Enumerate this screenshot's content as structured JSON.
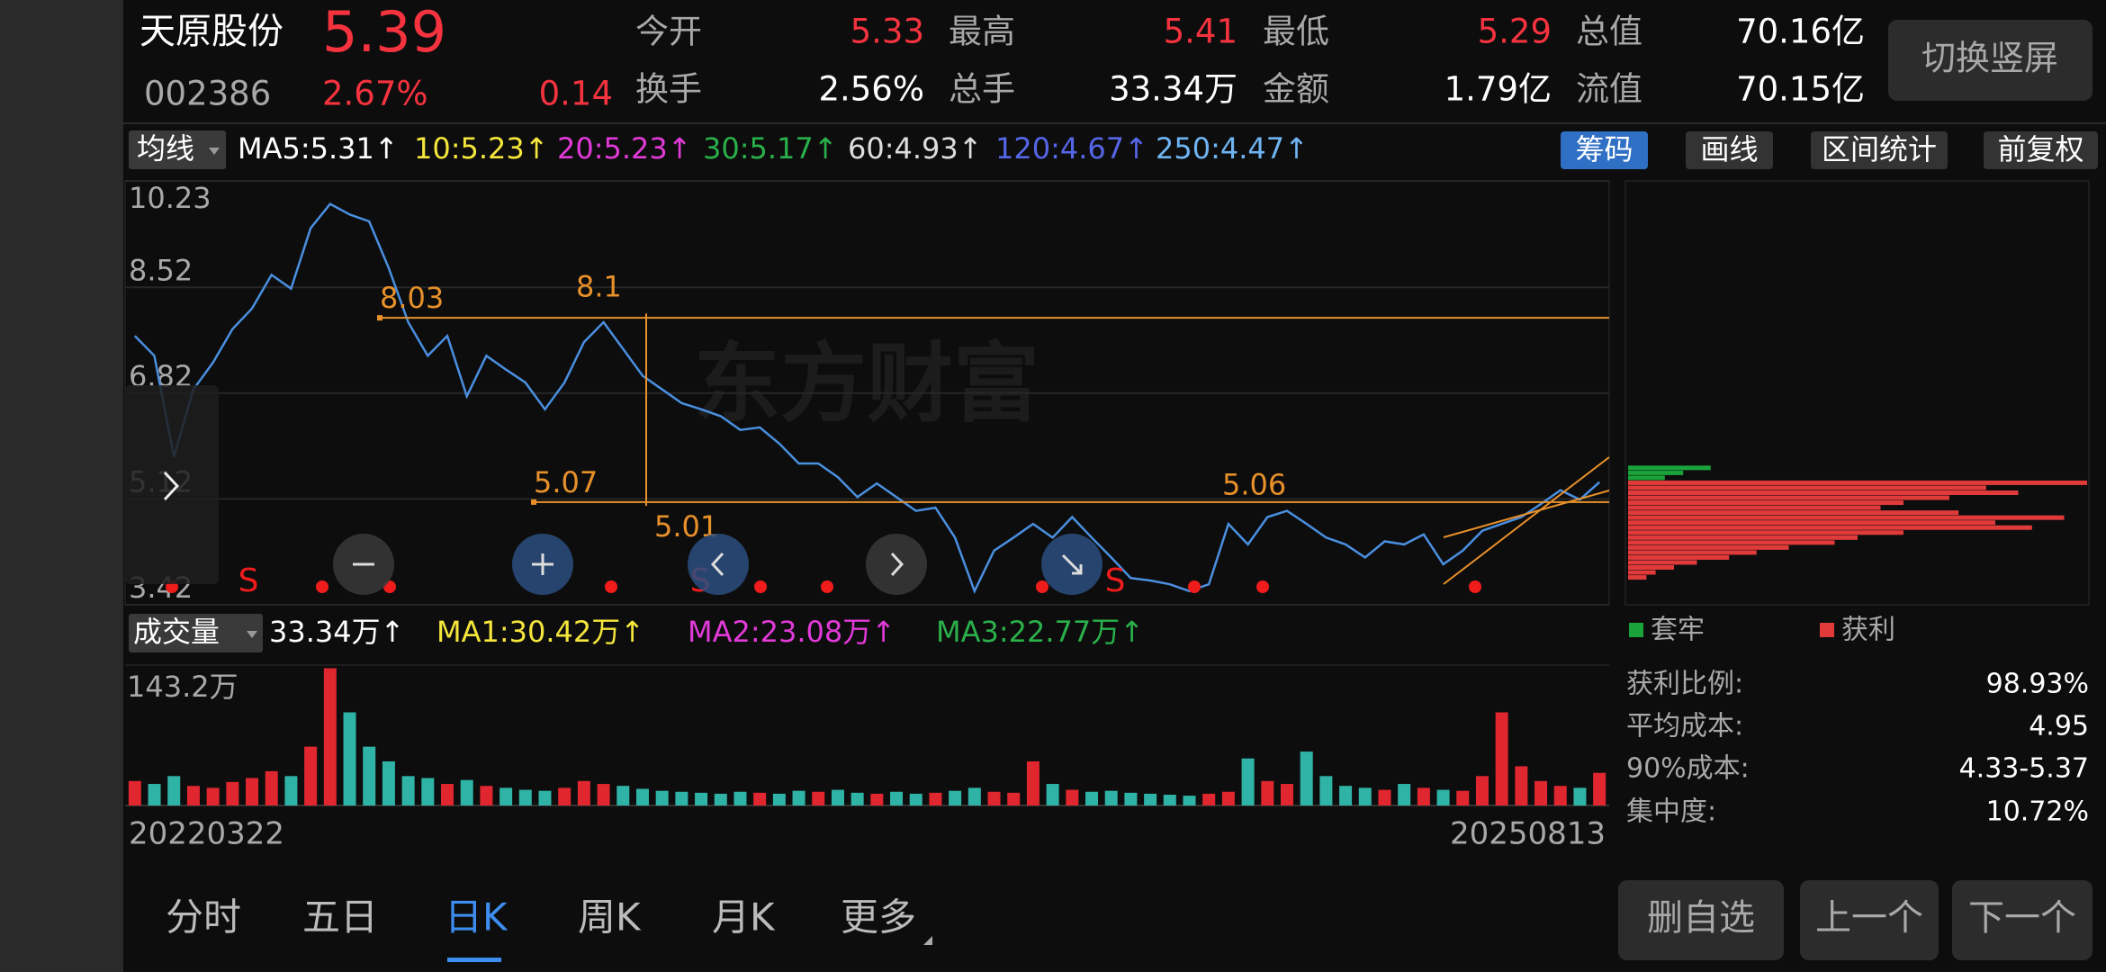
{
  "header": {
    "name": "天原股份",
    "price": "5.39",
    "code": "002386",
    "change_pct": "2.67%",
    "change": "0.14",
    "fields": [
      {
        "label": "今开",
        "value": "5.33"
      },
      {
        "label": "最高",
        "value": "5.41"
      },
      {
        "label": "最低",
        "value": "5.29"
      },
      {
        "label": "总值",
        "value": "70.16亿"
      },
      {
        "label": "换手",
        "value": "2.56%"
      },
      {
        "label": "总手",
        "value": "33.34万"
      },
      {
        "label": "金额",
        "value": "1.79亿"
      },
      {
        "label": "流值",
        "value": "70.15亿"
      }
    ],
    "button": "切换竖屏"
  },
  "ma_legend": {
    "label": "均线",
    "items": [
      {
        "text": "MA5:5.31↑",
        "color": "#ffffff"
      },
      {
        "text": "10:5.23↑",
        "color": "#f5e63c"
      },
      {
        "text": "20:5.23↑",
        "color": "#e23ad8"
      },
      {
        "text": "30:5.17↑",
        "color": "#2ab04a"
      },
      {
        "text": "60:4.93↑",
        "color": "#dddddd"
      },
      {
        "text": "120:4.67↑",
        "color": "#5566e8"
      },
      {
        "text": "250:4.47↑",
        "color": "#6fb4f2"
      }
    ]
  },
  "tools": [
    "筹码",
    "画线",
    "区间统计",
    "前复权"
  ],
  "price_chart": {
    "type": "line",
    "color": "#4a8fe0",
    "categories": [
      "20220322",
      null,
      null,
      null,
      null,
      null,
      null,
      null,
      null,
      null,
      null,
      null,
      null,
      null,
      null,
      null,
      null,
      null,
      null,
      null,
      null,
      null,
      null,
      null,
      null,
      null,
      null,
      null,
      null,
      null,
      null,
      null,
      null,
      null,
      null,
      null,
      null,
      null,
      null,
      null,
      null,
      null,
      null,
      null,
      null,
      null,
      null,
      null,
      null,
      null,
      null,
      null,
      null,
      null,
      null,
      null,
      null,
      null,
      null,
      null,
      null,
      null,
      null,
      null,
      null,
      null,
      null,
      null,
      null,
      null,
      null,
      null,
      null,
      null,
      null,
      "20250813"
    ],
    "values": [
      7.74,
      7.42,
      5.8,
      6.88,
      7.31,
      7.85,
      8.18,
      8.72,
      8.5,
      9.47,
      9.86,
      9.69,
      9.58,
      8.83,
      7.96,
      7.42,
      7.74,
      6.77,
      7.42,
      7.2,
      6.99,
      6.56,
      6.99,
      7.64,
      7.96,
      7.53,
      7.1,
      6.88,
      6.66,
      6.56,
      6.45,
      6.23,
      6.27,
      6.01,
      5.69,
      5.69,
      5.47,
      5.15,
      5.37,
      5.15,
      4.93,
      4.98,
      4.5,
      3.64,
      4.29,
      4.5,
      4.72,
      4.5,
      4.83,
      4.5,
      4.18,
      3.85,
      3.81,
      3.75,
      3.64,
      3.75,
      4.72,
      4.39,
      4.83,
      4.93,
      4.72,
      4.5,
      4.39,
      4.18,
      4.44,
      4.39,
      4.55,
      4.07,
      4.29,
      4.61,
      4.72,
      4.83,
      5.04,
      5.26,
      5.11,
      5.39
    ],
    "ylim": [
      3.42,
      10.23
    ],
    "yticks": [
      10.23,
      8.52,
      6.82,
      5.12,
      3.42
    ],
    "grid": true,
    "watermark": "东方财富",
    "hlines": [
      8.03,
      5.07
    ],
    "price_labels": [
      8.1,
      5.01,
      5.06
    ],
    "signals": [
      "S",
      "S",
      "S"
    ]
  },
  "volume_legend": {
    "label": "成交量",
    "items": [
      {
        "text": "33.34万↑",
        "color": "#ffffff"
      },
      {
        "text": "MA1:30.42万↑",
        "color": "#f5e63c"
      },
      {
        "text": "MA2:23.08万↑",
        "color": "#e23ad8"
      },
      {
        "text": "MA3:22.77万↑",
        "color": "#2ab04a"
      }
    ]
  },
  "volume_chart": {
    "type": "bar",
    "values": [
      25,
      22,
      30,
      20,
      18,
      24,
      28,
      35,
      30,
      60,
      140,
      95,
      60,
      45,
      30,
      28,
      22,
      26,
      20,
      18,
      16,
      15,
      18,
      25,
      22,
      20,
      17,
      15,
      14,
      13,
      12,
      14,
      13,
      12,
      15,
      14,
      16,
      13,
      12,
      14,
      12,
      13,
      15,
      18,
      14,
      13,
      45,
      22,
      16,
      14,
      15,
      13,
      12,
      11,
      10,
      12,
      14,
      48,
      25,
      22,
      55,
      30,
      20,
      18,
      16,
      22,
      18,
      16,
      15,
      30,
      95,
      40,
      25,
      20,
      18,
      33.34
    ],
    "ylim": [
      0,
      143.2
    ],
    "yticks": [
      {
        "value": 143.2,
        "label": "143.2万"
      }
    ]
  },
  "chip": {
    "legend": [
      {
        "text": "套牢",
        "color": "#1aa33a"
      },
      {
        "text": "获利",
        "color": "#e03a3a"
      }
    ],
    "levels": [
      5.62,
      5.54,
      5.46,
      5.38,
      5.3,
      5.22,
      5.14,
      5.06,
      4.98,
      4.9,
      4.82,
      4.74,
      4.66,
      4.58,
      4.5,
      4.42,
      4.34,
      4.26,
      4.18,
      4.1,
      4.02,
      3.94,
      3.86
    ],
    "trapped": [
      18,
      12,
      8,
      0,
      0,
      0,
      0,
      0,
      0,
      0,
      0,
      0,
      0,
      0,
      0,
      0,
      0,
      0,
      0,
      0,
      0,
      0,
      0
    ],
    "profit": [
      0,
      0,
      0,
      100,
      78,
      85,
      70,
      60,
      55,
      72,
      95,
      80,
      88,
      60,
      50,
      45,
      35,
      28,
      22,
      15,
      10,
      6,
      4
    ],
    "stats": [
      [
        "获利比例:",
        "98.93%"
      ],
      [
        "平均成本:",
        "4.95"
      ],
      [
        "90%成本:",
        "4.33-5.37"
      ],
      [
        "集中度:",
        "10.72%"
      ]
    ]
  },
  "tabs": [
    "分时",
    "五日",
    "日K",
    "周K",
    "月K",
    "更多"
  ],
  "buttons": [
    "删自选",
    "上一个",
    "下一个"
  ]
}
